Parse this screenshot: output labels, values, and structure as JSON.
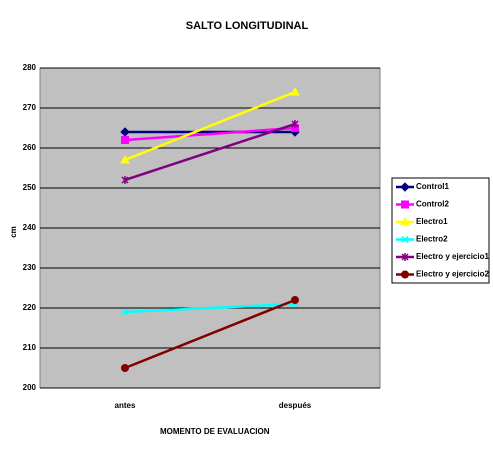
{
  "chart_data": {
    "type": "line",
    "title": "SALTO LONGITUDINAL",
    "x_label": "MOMENTO DE EVALUACION",
    "y_label": "cm",
    "categories": [
      "antes",
      "después"
    ],
    "series": [
      {
        "name": "Control1",
        "color": "#000080",
        "marker": "diamond",
        "values": [
          264,
          264
        ]
      },
      {
        "name": "Control2",
        "color": "#ff00ff",
        "marker": "square",
        "values": [
          262,
          265
        ]
      },
      {
        "name": "Electro1",
        "color": "#ffff00",
        "marker": "triangle",
        "values": [
          257,
          274
        ]
      },
      {
        "name": "Electro2",
        "color": "#00ffff",
        "marker": "x",
        "values": [
          219,
          221
        ]
      },
      {
        "name": "Electro y ejercicio1",
        "color": "#800080",
        "marker": "star",
        "values": [
          252,
          266
        ]
      },
      {
        "name": "Electro y ejercicio2",
        "color": "#800000",
        "marker": "circle",
        "values": [
          205,
          222
        ]
      }
    ],
    "ylim": [
      200,
      280
    ],
    "yticks": [
      200,
      210,
      220,
      230,
      240,
      250,
      260,
      270,
      280
    ],
    "grid": true,
    "legend": "right"
  }
}
